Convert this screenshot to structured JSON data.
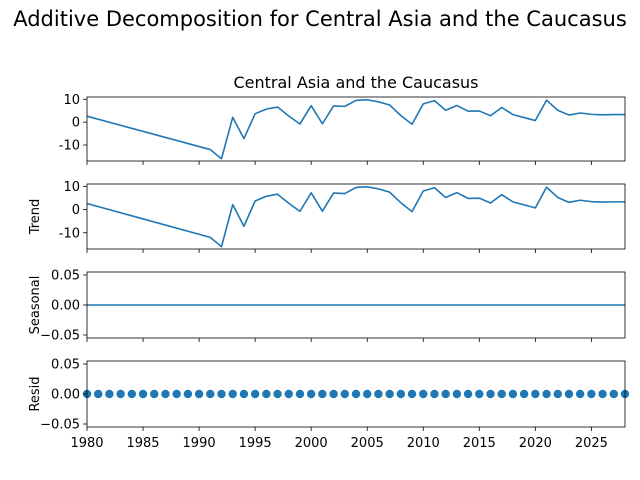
{
  "chart_data": {
    "type": "line",
    "title": "Additive Decomposition for Central Asia and the Caucasus",
    "x": [
      1980,
      1991,
      1992,
      1993,
      1994,
      1995,
      1996,
      1997,
      1998,
      1999,
      2000,
      2001,
      2002,
      2003,
      2004,
      2005,
      2006,
      2007,
      2008,
      2009,
      2010,
      2011,
      2012,
      2013,
      2014,
      2015,
      2016,
      2017,
      2018,
      2019,
      2020,
      2021,
      2022,
      2023,
      2024,
      2025,
      2026,
      2027,
      2028
    ],
    "xlim": [
      1980,
      2028
    ],
    "xticks": [
      1980,
      1985,
      1990,
      1995,
      2000,
      2005,
      2010,
      2015,
      2020,
      2025
    ],
    "panels": [
      {
        "key": "observed",
        "title": "Central Asia and the Caucasus",
        "ylabel": "",
        "ylim": [
          -17,
          11
        ],
        "yticks": [
          10,
          0,
          -10
        ],
        "marker": "line",
        "values": [
          2.6,
          -12.0,
          -16.0,
          2.1,
          -7.2,
          3.7,
          5.7,
          6.6,
          2.7,
          -0.8,
          7.2,
          -0.7,
          7.1,
          6.9,
          9.5,
          9.8,
          8.9,
          7.5,
          2.9,
          -0.9,
          8.0,
          9.4,
          5.2,
          7.3,
          4.8,
          4.9,
          2.8,
          6.4,
          3.3,
          2.0,
          0.7,
          9.6,
          5.2,
          3.1,
          4.0,
          3.4,
          3.2,
          3.3,
          3.3
        ]
      },
      {
        "key": "trend",
        "title": "",
        "ylabel": "Trend",
        "ylim": [
          -17,
          11
        ],
        "yticks": [
          10,
          0,
          -10
        ],
        "marker": "line",
        "values": [
          2.6,
          -12.0,
          -16.0,
          2.1,
          -7.2,
          3.7,
          5.7,
          6.6,
          2.7,
          -0.8,
          7.2,
          -0.7,
          7.1,
          6.9,
          9.5,
          9.8,
          8.9,
          7.5,
          2.9,
          -0.9,
          8.0,
          9.4,
          5.2,
          7.3,
          4.8,
          4.9,
          2.8,
          6.4,
          3.3,
          2.0,
          0.7,
          9.6,
          5.2,
          3.1,
          4.0,
          3.4,
          3.2,
          3.3,
          3.3
        ]
      },
      {
        "key": "seasonal",
        "title": "",
        "ylabel": "Seasonal",
        "ylim": [
          -0.055,
          0.055
        ],
        "yticks": [
          0.05,
          0.0,
          -0.05
        ],
        "ytick_labels": [
          "0.05",
          "0.00",
          "−0.05"
        ],
        "marker": "line",
        "values": [
          0,
          0
        ]
      },
      {
        "key": "resid",
        "title": "",
        "ylabel": "Resid",
        "ylim": [
          -0.055,
          0.055
        ],
        "yticks": [
          0.05,
          0.0,
          -0.05
        ],
        "ytick_labels": [
          "0.05",
          "0.00",
          "−0.05"
        ],
        "marker": "dots",
        "values": [
          0
        ]
      }
    ]
  },
  "colors": {
    "series": "#1f77b4"
  }
}
